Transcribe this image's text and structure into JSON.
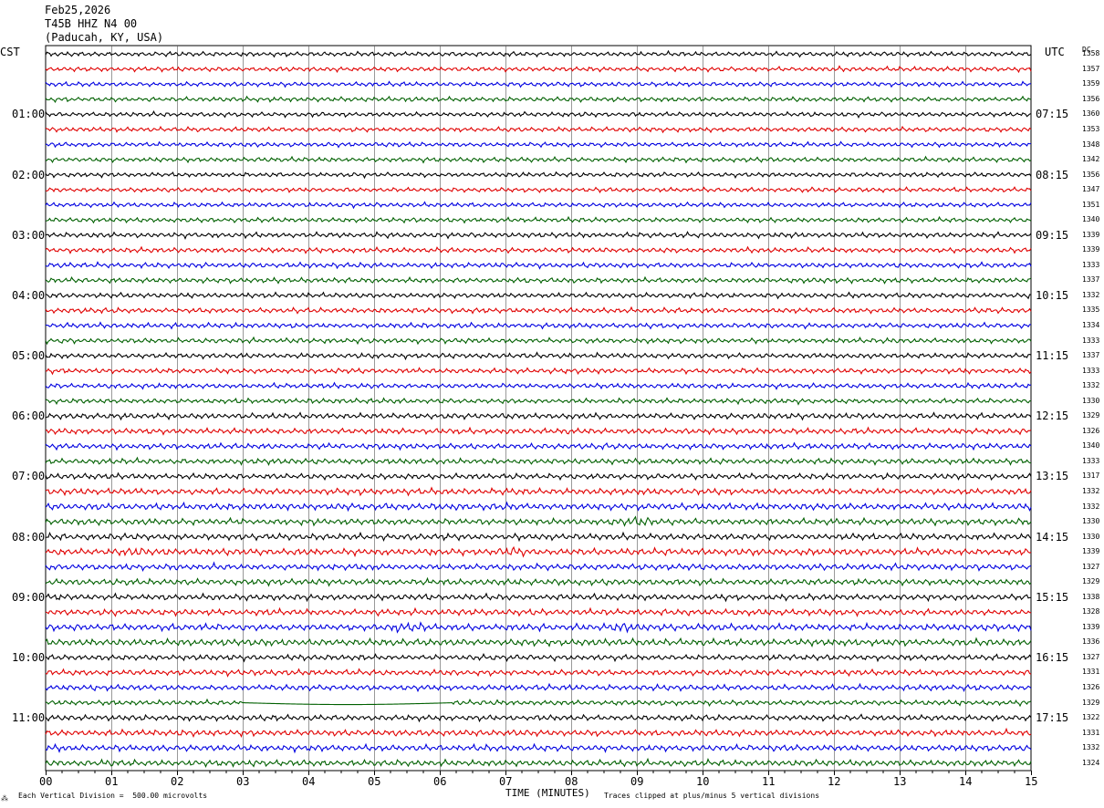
{
  "header": {
    "date": "Feb25,2026",
    "station": "T45B HHZ N4 00",
    "location": "(Paducah, KY, USA)"
  },
  "axis_labels": {
    "left_timezone": "CST",
    "right_timezone": "UTC",
    "dc_header": "DC",
    "x_title": "TIME (MINUTES)",
    "scale_note": "Each Vertical Division =  500.00 microvolts",
    "clip_note": "Traces clipped at plus/minus 5 vertical divisions",
    "corner_mark": "⁂"
  },
  "colors": {
    "trace_cycle": [
      "#000000",
      "#e00000",
      "#0000e0",
      "#006000"
    ],
    "grid": "#000000",
    "background": "#ffffff"
  },
  "chart_data": {
    "type": "line",
    "description_units": "helicorder: one row per 15 minutes, x in minutes 0-15",
    "x_ticks": [
      "00",
      "01",
      "02",
      "03",
      "04",
      "05",
      "06",
      "07",
      "08",
      "09",
      "10",
      "11",
      "12",
      "13",
      "14",
      "15"
    ],
    "xlim": [
      0,
      15
    ],
    "left_hour_labels": [
      "01:00",
      "02:00",
      "03:00",
      "04:00",
      "05:00",
      "06:00",
      "07:00",
      "08:00",
      "09:00",
      "10:00",
      "11:00"
    ],
    "right_hour_labels": [
      "07:15",
      "08:15",
      "09:15",
      "10:15",
      "11:15",
      "12:15",
      "13:15",
      "14:15",
      "15:15",
      "16:15",
      "17:15"
    ],
    "dc_values": [
      "1358",
      "1357",
      "1359",
      "1356",
      "1360",
      "1353",
      "1348",
      "1342",
      "1356",
      "1347",
      "1351",
      "1340",
      "1339",
      "1339",
      "1333",
      "1337",
      "1332",
      "1335",
      "1334",
      "1333",
      "1337",
      "1333",
      "1332",
      "1330",
      "1329",
      "1326",
      "1340",
      "1333",
      "1317",
      "1332",
      "1332",
      "1330",
      "1330",
      "1339",
      "1327",
      "1329",
      "1338",
      "1328",
      "1339",
      "1336",
      "1327",
      "1331",
      "1326",
      "1329",
      "1322",
      "1331",
      "1332",
      "1324"
    ],
    "row_amplitudes": [
      0.8,
      0.8,
      0.8,
      0.8,
      0.8,
      0.8,
      0.8,
      0.8,
      0.8,
      0.8,
      0.8,
      0.8,
      0.9,
      0.9,
      0.9,
      0.9,
      0.9,
      0.9,
      0.9,
      0.9,
      0.9,
      0.9,
      0.9,
      0.9,
      1.0,
      1.0,
      1.0,
      1.0,
      1.0,
      1.1,
      1.2,
      1.1,
      1.1,
      1.2,
      1.1,
      1.1,
      1.1,
      1.1,
      1.2,
      1.2,
      1.0,
      1.0,
      1.0,
      0.9,
      1.0,
      1.1,
      1.1,
      1.1
    ],
    "events": [
      {
        "row": 31,
        "minute": 8.9,
        "amplitude": 2.0
      },
      {
        "row": 33,
        "minute": 1.5,
        "amplitude": 1.5
      },
      {
        "row": 33,
        "minute": 7.2,
        "amplitude": 1.6
      },
      {
        "row": 38,
        "minute": 5.5,
        "amplitude": 1.8
      },
      {
        "row": 38,
        "minute": 8.8,
        "amplitude": 1.8
      }
    ],
    "flat_segments": [
      {
        "row": 43,
        "start_minute": 3.0,
        "end_minute": 6.2
      }
    ]
  }
}
